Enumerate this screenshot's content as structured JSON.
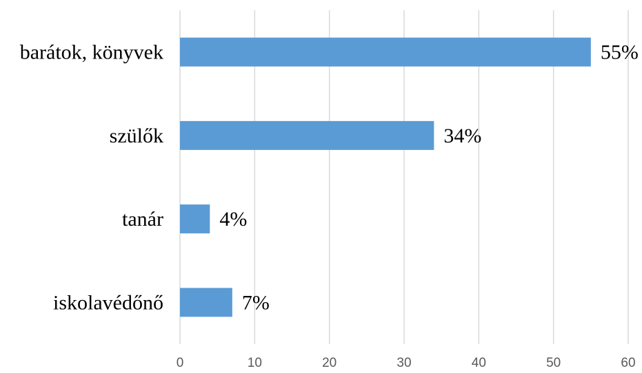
{
  "chart_data": {
    "type": "bar",
    "orientation": "horizontal",
    "categories": [
      "barátok, könyvek",
      "szülők",
      "tanár",
      "iskolavédőnő"
    ],
    "values": [
      55,
      34,
      4,
      7
    ],
    "data_labels": [
      "55%",
      "34%",
      "4%",
      "7%"
    ],
    "xlim": [
      0,
      60
    ],
    "x_ticks": [
      0,
      10,
      20,
      30,
      40,
      50,
      60
    ],
    "x_tick_labels": [
      "0",
      "10",
      "20",
      "30",
      "40",
      "50",
      "60"
    ],
    "title": "",
    "xlabel": "",
    "ylabel": "",
    "grid": "vertical",
    "legend": "none",
    "colors": {
      "bar": "#5b9bd5",
      "grid": "#d9d9d9",
      "tick_text": "#595959",
      "label_text": "#000000"
    }
  }
}
